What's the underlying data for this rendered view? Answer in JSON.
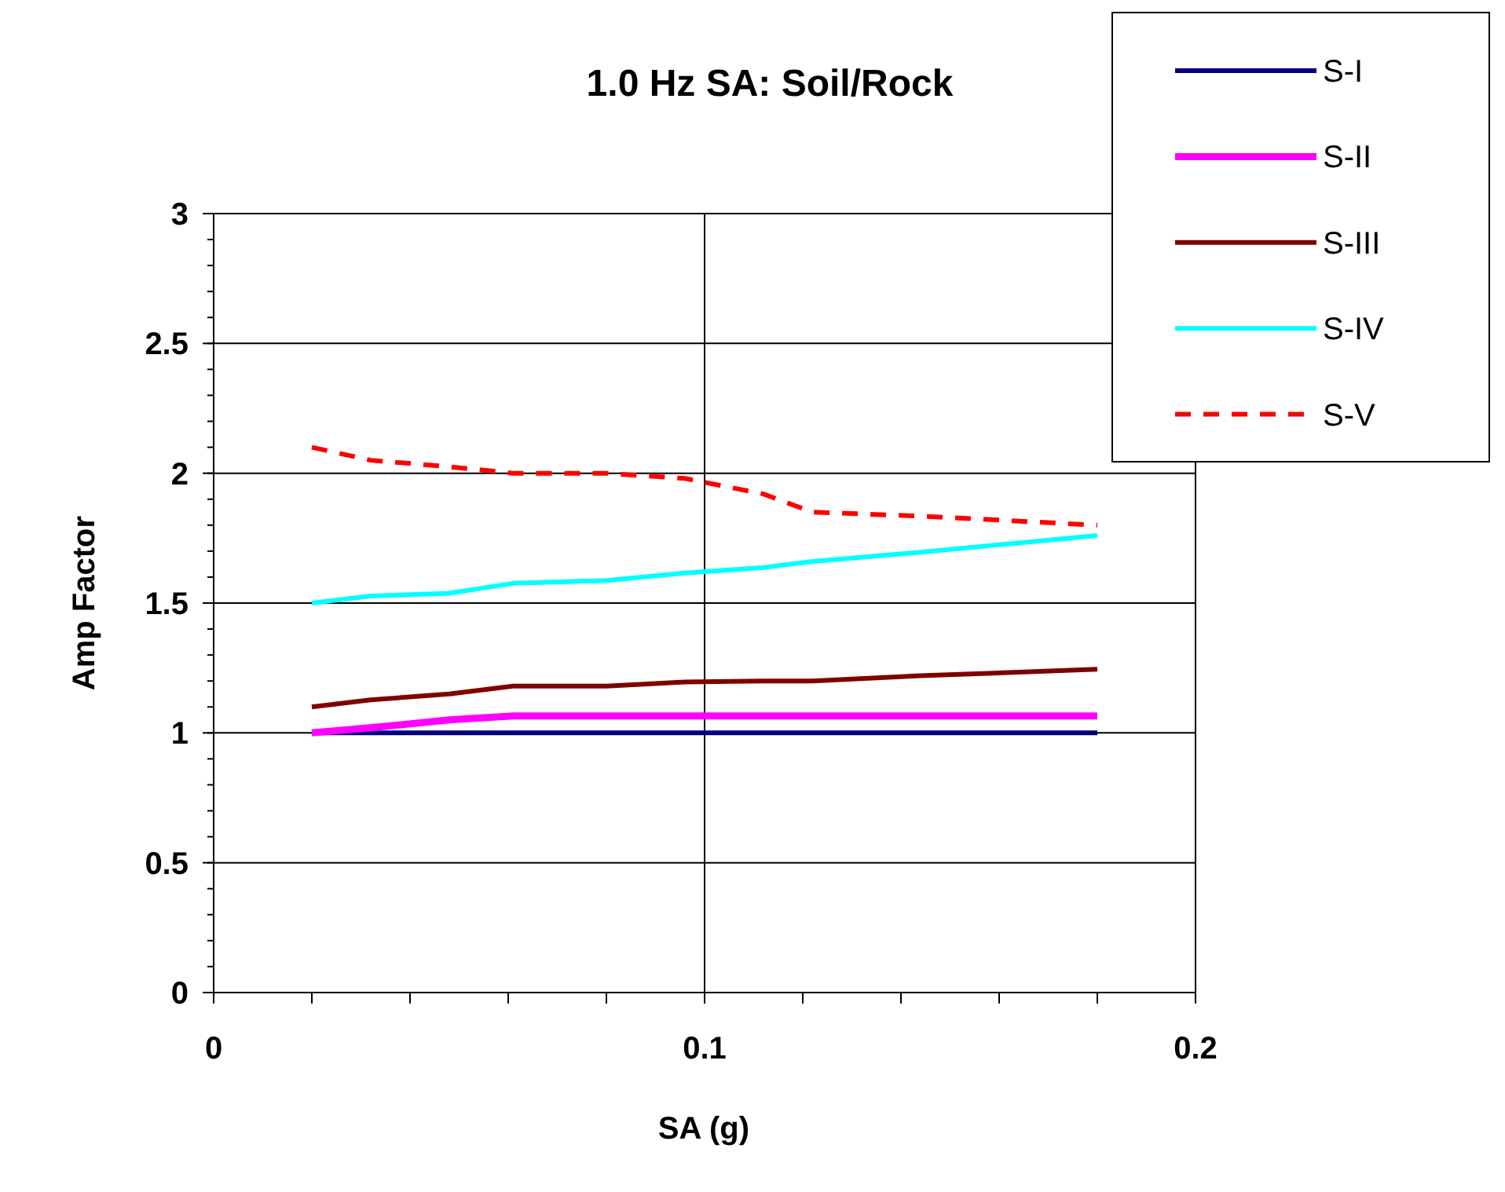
{
  "chart_data": {
    "type": "line",
    "title": "1.0 Hz SA: Soil/Rock",
    "xlabel": "SA (g)",
    "ylabel": "Amp Factor",
    "x": [
      0.02,
      0.032,
      0.048,
      0.061,
      0.08,
      0.096,
      0.112,
      0.122,
      0.144,
      0.18
    ],
    "series": [
      {
        "name": "S-I",
        "color": "#000080",
        "line_style": "solid",
        "values": [
          1,
          1,
          1,
          1,
          1,
          1,
          1,
          1,
          1,
          1
        ]
      },
      {
        "name": "S-II",
        "color": "#ff00ff",
        "line_style": "solid",
        "values": [
          1,
          1.02,
          1.05,
          1.065,
          1.065,
          1.065,
          1.065,
          1.065,
          1.065,
          1.065
        ]
      },
      {
        "name": "S-III",
        "color": "#800000",
        "line_style": "solid",
        "values": [
          1.1,
          1.127,
          1.15,
          1.18,
          1.18,
          1.196,
          1.2,
          1.2,
          1.22,
          1.245
        ]
      },
      {
        "name": "S-IV",
        "color": "#00ffff",
        "line_style": "solid",
        "values": [
          1.5,
          1.527,
          1.538,
          1.576,
          1.587,
          1.616,
          1.637,
          1.66,
          1.696,
          1.76
        ]
      },
      {
        "name": "S-V",
        "color": "#ff0000",
        "line_style": "dashed",
        "values": [
          2.1,
          2.05,
          2.025,
          2.0,
          2.0,
          1.98,
          1.92,
          1.85,
          1.835,
          1.8
        ]
      }
    ],
    "xlim": [
      0,
      0.2
    ],
    "ylim": [
      0,
      3
    ],
    "xticks": [
      0,
      {
        "value": 0.02,
        "label": null
      },
      {
        "value": 0.04,
        "label": null
      },
      {
        "value": 0.06,
        "label": null
      },
      {
        "value": 0.08,
        "label": null
      },
      0.1,
      {
        "value": 0.12,
        "label": null
      },
      {
        "value": 0.14,
        "label": null
      },
      {
        "value": 0.16,
        "label": null
      },
      {
        "value": 0.18,
        "label": null
      },
      0.2
    ],
    "yticks": [
      0,
      0.5,
      1,
      1.5,
      2,
      2.5,
      3
    ],
    "grid": true,
    "legend": "top right",
    "marker": "none"
  }
}
